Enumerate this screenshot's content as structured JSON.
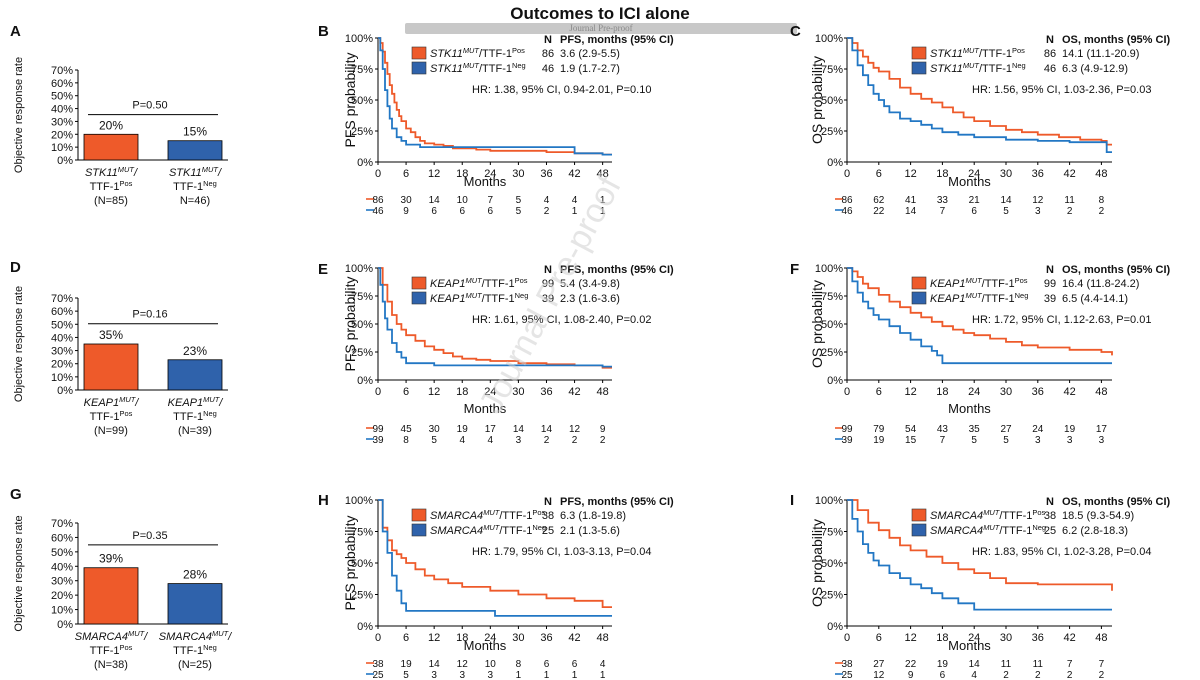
{
  "page": {
    "title": "Outcomes to ICI alone",
    "journal_tag": "Journal Pre-proof",
    "watermark": "Journal Pre-proof"
  },
  "colors": {
    "pos": "#ee5a2a",
    "neg": "#2f62ab",
    "negLine": "#2277c4"
  },
  "bar_panels": [
    {
      "letter": "A",
      "gene": "STK11",
      "p": "P=0.50",
      "values": [
        20,
        15
      ],
      "value_labels": [
        "20%",
        "15%"
      ],
      "ylabel": "Objective response rate",
      "yticks": [
        "0%",
        "10%",
        "20%",
        "30%",
        "40%",
        "50%",
        "60%",
        "70%"
      ],
      "cats": [
        {
          "line1a": "STK11",
          "sup1": "MUT",
          "line1b": "/",
          "line2a": "TTF-1",
          "sup2": "Pos",
          "line3": "(N=85)"
        },
        {
          "line1a": "STK11",
          "sup1": "MUT",
          "line1b": "/",
          "line2a": "TTF-1",
          "sup2": "Neg",
          "line3": "N=46)"
        }
      ]
    },
    {
      "letter": "D",
      "gene": "KEAP1",
      "p": "P=0.16",
      "values": [
        35,
        23
      ],
      "value_labels": [
        "35%",
        "23%"
      ],
      "ylabel": "Objective response rate",
      "yticks": [
        "0%",
        "10%",
        "20%",
        "30%",
        "40%",
        "50%",
        "60%",
        "70%"
      ],
      "cats": [
        {
          "line1a": "KEAP1",
          "sup1": "MUT",
          "line1b": "/",
          "line2a": "TTF-1",
          "sup2": "Pos",
          "line3": "(N=99)"
        },
        {
          "line1a": "KEAP1",
          "sup1": "MUT",
          "line1b": "/",
          "line2a": "TTF-1",
          "sup2": "Neg",
          "line3": "(N=39)"
        }
      ]
    },
    {
      "letter": "G",
      "gene": "SMARCA4",
      "p": "P=0.35",
      "values": [
        39,
        28
      ],
      "value_labels": [
        "39%",
        "28%"
      ],
      "ylabel": "Objective response rate",
      "yticks": [
        "0%",
        "10%",
        "20%",
        "30%",
        "40%",
        "50%",
        "60%",
        "70%"
      ],
      "cats": [
        {
          "line1a": "SMARCA4",
          "sup1": "MUT",
          "line1b": "/",
          "line2a": "TTF-1",
          "sup2": "Pos",
          "line3": "(N=38)"
        },
        {
          "line1a": "SMARCA4",
          "sup1": "MUT",
          "line1b": "/",
          "line2a": "TTF-1",
          "sup2": "Neg",
          "line3": "(N=25)"
        }
      ]
    }
  ],
  "chart_data": [
    {
      "type": "bar",
      "panel": "A",
      "categories": [
        "STK11 MUT/TTF-1 Pos (N=85)",
        "STK11 MUT/TTF-1 Neg N=46)"
      ],
      "values": [
        20,
        15
      ],
      "ylabel": "Objective response rate",
      "ylim": [
        0,
        70
      ],
      "annotation": "P=0.50"
    },
    {
      "type": "bar",
      "panel": "D",
      "categories": [
        "KEAP1 MUT/TTF-1 Pos (N=99)",
        "KEAP1 MUT/TTF-1 Neg (N=39)"
      ],
      "values": [
        35,
        23
      ],
      "ylabel": "Objective response rate",
      "ylim": [
        0,
        70
      ],
      "annotation": "P=0.16"
    },
    {
      "type": "bar",
      "panel": "G",
      "categories": [
        "SMARCA4 MUT/TTF-1 Pos (N=38)",
        "SMARCA4 MUT/TTF-1 Neg (N=25)"
      ],
      "values": [
        39,
        28
      ],
      "ylabel": "Objective response rate",
      "ylim": [
        0,
        70
      ],
      "annotation": "P=0.35"
    },
    {
      "type": "line",
      "panel": "B",
      "ylabel": "PFS probability",
      "xlabel": "Months",
      "xlim": [
        0,
        50
      ],
      "ylim": [
        0,
        100
      ],
      "header_n": "N",
      "header_stat": "PFS, months (95% CI)",
      "series": [
        {
          "gene": "STK11",
          "sup1": "MUT",
          "ttf": "/TTF-1",
          "sup2": "Pos",
          "n": "86",
          "stat": "3.6 (2.9-5.5)",
          "x": [
            0,
            0.5,
            1,
            1.5,
            2,
            2.5,
            3,
            3.5,
            4,
            4.5,
            5,
            6,
            7,
            8,
            9,
            10,
            12,
            14,
            16,
            18,
            21,
            24,
            30,
            36,
            42,
            48,
            50
          ],
          "y": [
            100,
            96,
            89,
            80,
            71,
            62,
            55,
            48,
            42,
            37,
            33,
            27,
            24,
            20,
            17,
            15,
            14,
            13,
            11,
            11,
            10,
            9,
            9,
            8,
            7,
            6,
            6
          ]
        },
        {
          "gene": "STK11",
          "sup1": "MUT",
          "ttf": "/TTF-1",
          "sup2": "Neg",
          "n": "46",
          "stat": "1.9 (1.7-2.7)",
          "x": [
            0,
            0.5,
            1,
            1.5,
            2,
            2.5,
            3,
            4,
            5,
            6,
            9,
            12,
            24,
            36,
            41,
            42,
            48,
            50
          ],
          "y": [
            100,
            90,
            75,
            58,
            45,
            35,
            27,
            20,
            17,
            14,
            12,
            12,
            12,
            12,
            12,
            7,
            6,
            6
          ]
        }
      ],
      "hr": "HR: 1.38, 95% CI, 0.94-2.01, P=0.10",
      "xticks": [
        0,
        6,
        12,
        18,
        24,
        30,
        36,
        42,
        48
      ],
      "yticks": [
        "0%",
        "25%",
        "50%",
        "75%",
        "100%"
      ],
      "risk": [
        [
          "86",
          "30",
          "14",
          "10",
          "7",
          "5",
          "4",
          "4",
          "1"
        ],
        [
          "46",
          "9",
          "6",
          "6",
          "6",
          "5",
          "2",
          "1",
          "1"
        ]
      ]
    },
    {
      "type": "line",
      "panel": "C",
      "ylabel": "OS probability",
      "xlabel": "Months",
      "xlim": [
        0,
        50
      ],
      "ylim": [
        0,
        100
      ],
      "header_n": "N",
      "header_stat": "OS, months (95% CI)",
      "series": [
        {
          "gene": "STK11",
          "sup1": "MUT",
          "ttf": "/TTF-1",
          "sup2": "Pos",
          "n": "86",
          "stat": "14.1 (11.1-20.9)",
          "x": [
            0,
            1,
            2,
            3,
            4,
            5,
            6,
            8,
            10,
            12,
            14,
            16,
            18,
            20,
            22,
            24,
            27,
            30,
            33,
            36,
            40,
            44,
            48,
            49,
            50
          ],
          "y": [
            100,
            96,
            90,
            85,
            80,
            76,
            73,
            67,
            60,
            55,
            51,
            48,
            44,
            40,
            36,
            33,
            29,
            26,
            24,
            22,
            20,
            18,
            17,
            14,
            14
          ]
        },
        {
          "gene": "STK11",
          "sup1": "MUT",
          "ttf": "/TTF-1",
          "sup2": "Neg",
          "n": "46",
          "stat": "6.3 (4.9-12.9)",
          "x": [
            0,
            1,
            2,
            3,
            4,
            5,
            6,
            7,
            8,
            10,
            12,
            14,
            16,
            18,
            21,
            24,
            30,
            36,
            42,
            48,
            49,
            50
          ],
          "y": [
            100,
            90,
            78,
            70,
            62,
            55,
            50,
            45,
            40,
            35,
            33,
            30,
            27,
            24,
            22,
            20,
            18,
            17,
            16,
            16,
            8,
            8
          ]
        }
      ],
      "hr": "HR: 1.56, 95% CI, 1.03-2.36, P=0.03",
      "xticks": [
        0,
        6,
        12,
        18,
        24,
        30,
        36,
        42,
        48
      ],
      "yticks": [
        "0%",
        "25%",
        "50%",
        "75%",
        "100%"
      ],
      "risk": [
        [
          "86",
          "62",
          "41",
          "33",
          "21",
          "14",
          "12",
          "11",
          "8"
        ],
        [
          "46",
          "22",
          "14",
          "7",
          "6",
          "5",
          "3",
          "2",
          "2"
        ]
      ]
    },
    {
      "type": "line",
      "panel": "E",
      "ylabel": "PFS probability",
      "xlabel": "Months",
      "xlim": [
        0,
        50
      ],
      "ylim": [
        0,
        100
      ],
      "header_n": "N",
      "header_stat": "PFS, months (95% CI)",
      "series": [
        {
          "gene": "KEAP1",
          "sup1": "MUT",
          "ttf": "/TTF-1",
          "sup2": "Pos",
          "n": "99",
          "stat": "5.4 (3.4-9.8)",
          "x": [
            0,
            1,
            2,
            3,
            4,
            5,
            6,
            8,
            10,
            12,
            14,
            16,
            18,
            21,
            24,
            30,
            36,
            42,
            48,
            50
          ],
          "y": [
            100,
            85,
            70,
            58,
            50,
            45,
            40,
            35,
            30,
            27,
            24,
            21,
            19,
            18,
            17,
            15,
            14,
            13,
            11,
            11
          ]
        },
        {
          "gene": "KEAP1",
          "sup1": "MUT",
          "ttf": "/TTF-1",
          "sup2": "Neg",
          "n": "39",
          "stat": "2.3 (1.6-3.6)",
          "x": [
            0,
            0.5,
            1,
            1.5,
            2,
            3,
            4,
            5,
            6,
            8,
            10,
            12,
            24,
            36,
            48,
            50
          ],
          "y": [
            100,
            85,
            70,
            55,
            45,
            33,
            25,
            20,
            15,
            15,
            15,
            13,
            13,
            13,
            12,
            12
          ]
        }
      ],
      "hr": "HR: 1.61, 95% CI, 1.08-2.40, P=0.02",
      "xticks": [
        0,
        6,
        12,
        18,
        24,
        30,
        36,
        42,
        48
      ],
      "yticks": [
        "0%",
        "25%",
        "50%",
        "75%",
        "100%"
      ],
      "risk": [
        [
          "99",
          "45",
          "30",
          "19",
          "17",
          "14",
          "14",
          "12",
          "9"
        ],
        [
          "39",
          "8",
          "5",
          "4",
          "4",
          "3",
          "2",
          "2",
          "2"
        ]
      ]
    },
    {
      "type": "line",
      "panel": "F",
      "ylabel": "OS probability",
      "xlabel": "Months",
      "xlim": [
        0,
        50
      ],
      "ylim": [
        0,
        100
      ],
      "header_n": "N",
      "header_stat": "OS, months (95% CI)",
      "series": [
        {
          "gene": "KEAP1",
          "sup1": "MUT",
          "ttf": "/TTF-1",
          "sup2": "Pos",
          "n": "99",
          "stat": "16.4 (11.8-24.2)",
          "x": [
            0,
            1,
            2,
            3,
            4,
            6,
            8,
            10,
            12,
            14,
            16,
            18,
            20,
            22,
            24,
            27,
            30,
            33,
            36,
            42,
            48,
            50
          ],
          "y": [
            100,
            97,
            92,
            86,
            82,
            76,
            70,
            65,
            60,
            56,
            52,
            48,
            45,
            42,
            40,
            37,
            34,
            31,
            29,
            27,
            25,
            22
          ]
        },
        {
          "gene": "KEAP1",
          "sup1": "MUT",
          "ttf": "/TTF-1",
          "sup2": "Neg",
          "n": "39",
          "stat": "6.5 (4.4-14.1)",
          "x": [
            0,
            1,
            2,
            3,
            4,
            5,
            6,
            8,
            10,
            12,
            14,
            16,
            17,
            18,
            24,
            30,
            36,
            42,
            48,
            50
          ],
          "y": [
            100,
            88,
            78,
            70,
            64,
            58,
            54,
            48,
            42,
            36,
            30,
            26,
            22,
            15,
            15,
            15,
            15,
            15,
            15,
            15
          ]
        }
      ],
      "hr": "HR: 1.72, 95% CI, 1.12-2.63, P=0.01",
      "xticks": [
        0,
        6,
        12,
        18,
        24,
        30,
        36,
        42,
        48
      ],
      "yticks": [
        "0%",
        "25%",
        "50%",
        "75%",
        "100%"
      ],
      "risk": [
        [
          "99",
          "79",
          "54",
          "43",
          "35",
          "27",
          "24",
          "19",
          "17"
        ],
        [
          "39",
          "19",
          "15",
          "7",
          "5",
          "5",
          "3",
          "3",
          "3"
        ]
      ]
    },
    {
      "type": "line",
      "panel": "H",
      "ylabel": "PFS probability",
      "xlabel": "Months",
      "xlim": [
        0,
        50
      ],
      "ylim": [
        0,
        100
      ],
      "header_n": "N",
      "header_stat": "PFS, months (95% CI)",
      "series": [
        {
          "gene": "SMARCA4",
          "sup1": "MUT",
          "ttf": "/TTF-1",
          "sup2": "Pos",
          "n": "38",
          "stat": "6.3 (1.8-19.8)",
          "x": [
            0,
            1,
            2,
            3,
            4,
            5,
            6,
            8,
            10,
            12,
            15,
            18,
            24,
            30,
            36,
            42,
            48,
            50
          ],
          "y": [
            100,
            78,
            68,
            60,
            57,
            54,
            50,
            45,
            40,
            37,
            34,
            31,
            28,
            25,
            22,
            20,
            15,
            15
          ]
        },
        {
          "gene": "SMARCA4",
          "sup1": "MUT",
          "ttf": "/TTF-1",
          "sup2": "Neg",
          "n": "25",
          "stat": "2.1 (1.3-5.6)",
          "x": [
            0,
            1,
            2,
            3,
            4,
            5,
            6,
            12,
            24,
            25,
            36,
            48,
            50
          ],
          "y": [
            100,
            75,
            58,
            40,
            28,
            18,
            12,
            12,
            12,
            8,
            8,
            8,
            8
          ]
        }
      ],
      "hr": "HR: 1.79, 95% CI, 1.03-3.13, P=0.04",
      "xticks": [
        0,
        6,
        12,
        18,
        24,
        30,
        36,
        42,
        48
      ],
      "yticks": [
        "0%",
        "25%",
        "50%",
        "75%",
        "100%"
      ],
      "risk": [
        [
          "38",
          "19",
          "14",
          "12",
          "10",
          "8",
          "6",
          "6",
          "4"
        ],
        [
          "25",
          "5",
          "3",
          "3",
          "3",
          "1",
          "1",
          "1",
          "1"
        ]
      ]
    },
    {
      "type": "line",
      "panel": "I",
      "ylabel": "OS probability",
      "xlabel": "Months",
      "xlim": [
        0,
        50
      ],
      "ylim": [
        0,
        100
      ],
      "header_n": "N",
      "header_stat": "OS, months (95% CI)",
      "series": [
        {
          "gene": "SMARCA4",
          "sup1": "MUT",
          "ttf": "/TTF-1",
          "sup2": "Pos",
          "n": "38",
          "stat": "18.5 (9.3-54.9)",
          "x": [
            0,
            2,
            4,
            6,
            8,
            10,
            12,
            15,
            18,
            21,
            24,
            27,
            30,
            36,
            42,
            48,
            50
          ],
          "y": [
            100,
            92,
            82,
            76,
            70,
            64,
            60,
            55,
            50,
            45,
            42,
            38,
            34,
            33,
            33,
            33,
            28
          ]
        },
        {
          "gene": "SMARCA4",
          "sup1": "MUT",
          "ttf": "/TTF-1",
          "sup2": "Neg",
          "n": "25",
          "stat": "6.2 (2.8-18.3)",
          "x": [
            0,
            1,
            2,
            3,
            4,
            5,
            6,
            8,
            10,
            12,
            14,
            16,
            18,
            21,
            24,
            30,
            36,
            42,
            48,
            50
          ],
          "y": [
            100,
            85,
            75,
            65,
            58,
            52,
            48,
            42,
            38,
            33,
            30,
            26,
            22,
            18,
            13,
            13,
            13,
            13,
            13,
            13
          ]
        }
      ],
      "hr": "HR: 1.83, 95% CI, 1.02-3.28, P=0.04",
      "xticks": [
        0,
        6,
        12,
        18,
        24,
        30,
        36,
        42,
        48
      ],
      "yticks": [
        "0%",
        "25%",
        "50%",
        "75%",
        "100%"
      ],
      "risk": [
        [
          "38",
          "27",
          "22",
          "19",
          "14",
          "11",
          "11",
          "7",
          "7"
        ],
        [
          "25",
          "12",
          "9",
          "6",
          "4",
          "2",
          "2",
          "2",
          "2"
        ]
      ]
    }
  ]
}
